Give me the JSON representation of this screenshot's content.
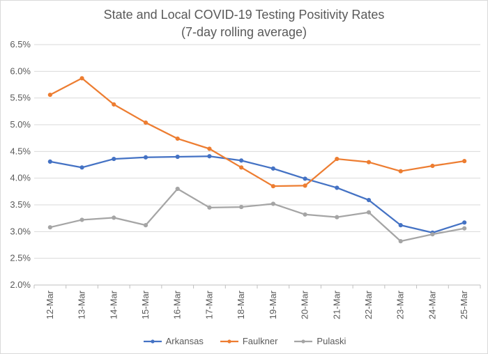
{
  "chart_data": {
    "type": "line",
    "title_line1": "State and Local COVID-19 Testing Positivity Rates",
    "title_line2": "(7-day rolling average)",
    "xlabel": "",
    "ylabel": "",
    "categories": [
      "12-Mar",
      "13-Mar",
      "14-Mar",
      "15-Mar",
      "16-Mar",
      "17-Mar",
      "18-Mar",
      "19-Mar",
      "20-Mar",
      "21-Mar",
      "22-Mar",
      "23-Mar",
      "24-Mar",
      "25-Mar"
    ],
    "ylim": [
      2.0,
      6.5
    ],
    "ytick_step": 0.5,
    "ytick_labels": [
      "2.0%",
      "2.5%",
      "3.0%",
      "3.5%",
      "4.0%",
      "4.5%",
      "5.0%",
      "5.5%",
      "6.0%",
      "6.5%"
    ],
    "grid": true,
    "legend_position": "bottom",
    "series": [
      {
        "name": "Arkansas",
        "color": "#4472c4",
        "values": [
          4.31,
          4.2,
          4.36,
          4.39,
          4.4,
          4.41,
          4.33,
          4.18,
          3.99,
          3.82,
          3.59,
          3.12,
          2.98,
          3.17
        ]
      },
      {
        "name": "Faulkner",
        "color": "#ed7d31",
        "values": [
          5.56,
          5.87,
          5.38,
          5.04,
          4.74,
          4.55,
          4.2,
          3.85,
          3.86,
          4.36,
          4.3,
          4.13,
          4.23,
          4.32
        ]
      },
      {
        "name": "Pulaski",
        "color": "#a5a5a5",
        "values": [
          3.08,
          3.22,
          3.26,
          3.12,
          3.8,
          3.45,
          3.46,
          3.52,
          3.32,
          3.27,
          3.36,
          2.82,
          2.95,
          3.06
        ]
      }
    ]
  }
}
